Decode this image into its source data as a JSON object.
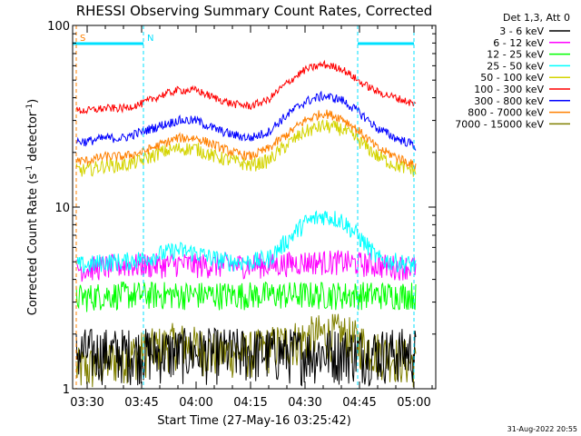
{
  "chart_data": {
    "type": "line",
    "title": "RHESSI Observing Summary Count Rates, Corrected",
    "xlabel": "Start Time (27-May-16 03:25:42)",
    "ylabel_main": "Corrected Count Rate (s",
    "ylabel_sup1": "-1",
    "ylabel_mid": " detector",
    "ylabel_sup2": "-1",
    "ylabel_end": ")",
    "y_scale": "log",
    "ylim": [
      1,
      100
    ],
    "y_ticks": [
      {
        "value": 1,
        "label": "1"
      },
      {
        "value": 10,
        "label": "10"
      },
      {
        "value": 100,
        "label": "100"
      }
    ],
    "x_start_min": 206,
    "x_end_min": 306,
    "x_ticks": [
      {
        "min": 210,
        "label": "03:30"
      },
      {
        "min": 225,
        "label": "03:45"
      },
      {
        "min": 240,
        "label": "04:00"
      },
      {
        "min": 255,
        "label": "04:15"
      },
      {
        "min": 270,
        "label": "04:30"
      },
      {
        "min": 285,
        "label": "04:45"
      },
      {
        "min": 300,
        "label": "05:00"
      }
    ],
    "legend_title": "Det 1,3, Att 0",
    "legend_placement": "right",
    "series": [
      {
        "name": "3 - 6 keV",
        "color": "#000000"
      },
      {
        "name": "6 - 12 keV",
        "color": "#ff00ff"
      },
      {
        "name": "12 - 25 keV",
        "color": "#00ff00"
      },
      {
        "name": "25 - 50 keV",
        "color": "#00ffff"
      },
      {
        "name": "50 - 100 keV",
        "color": "#d4d400"
      },
      {
        "name": "100 - 300 keV",
        "color": "#ff0000"
      },
      {
        "name": "300 - 800 keV",
        "color": "#0000ff"
      },
      {
        "name": "800 - 7000 keV",
        "color": "#ff8000"
      },
      {
        "name": "7000 - 15000 keV",
        "color": "#808000"
      }
    ],
    "envelopes": {
      "x": [
        206,
        210,
        215,
        220,
        225,
        230,
        235,
        240,
        245,
        250,
        255,
        260,
        265,
        270,
        275,
        280,
        285,
        290,
        295,
        300,
        301
      ],
      "100 - 300 keV": [
        34,
        34,
        35,
        35,
        37,
        41,
        44,
        44,
        40,
        37,
        36,
        39,
        48,
        57,
        61,
        58,
        49,
        43,
        40,
        37,
        36
      ],
      "300 - 800 keV": [
        23,
        23,
        24,
        24,
        26,
        28,
        30,
        30,
        27,
        25,
        24,
        26,
        32,
        38,
        41,
        39,
        33,
        27,
        24,
        22,
        21
      ],
      "800 - 7000 keV": [
        18,
        18,
        19,
        19,
        20,
        22,
        24,
        24,
        22,
        20,
        19,
        21,
        25,
        30,
        33,
        31,
        26,
        21,
        19,
        17,
        17
      ],
      "50 - 100 keV": [
        16,
        16,
        17,
        17,
        18,
        20,
        21,
        21,
        19,
        18,
        17,
        18,
        22,
        26,
        28,
        27,
        23,
        19,
        17,
        16,
        15
      ],
      "25 - 50 keV": [
        4.8,
        4.8,
        5,
        5,
        5.2,
        5.5,
        5.8,
        5.6,
        5.2,
        5,
        5,
        5.2,
        6.5,
        8.2,
        9,
        8.5,
        6.8,
        5.2,
        5,
        4.8,
        4.8
      ],
      "6 - 12 keV": [
        4.6,
        4.6,
        4.7,
        4.8,
        4.8,
        4.8,
        4.9,
        4.8,
        4.8,
        4.8,
        4.8,
        4.8,
        4.9,
        5,
        5,
        5,
        4.9,
        4.8,
        4.7,
        4.7,
        4.6
      ],
      "12 - 25 keV": [
        3.2,
        3.2,
        3.3,
        3.3,
        3.3,
        3.3,
        3.3,
        3.3,
        3.3,
        3.3,
        3.3,
        3.3,
        3.3,
        3.3,
        3.3,
        3.3,
        3.3,
        3.3,
        3.3,
        3.3,
        3.2
      ],
      "3 - 6 keV": [
        1.6,
        1.6,
        1.6,
        1.6,
        1.6,
        1.6,
        1.6,
        1.6,
        1.6,
        1.6,
        1.6,
        1.6,
        1.6,
        1.6,
        1.6,
        1.6,
        1.6,
        1.6,
        1.6,
        1.6,
        1.6
      ],
      "7000 - 15000 keV": [
        1.3,
        1.3,
        1.4,
        1.5,
        1.6,
        1.7,
        1.8,
        1.7,
        1.6,
        1.6,
        1.6,
        1.7,
        1.8,
        1.9,
        2,
        2,
        1.8,
        1.6,
        1.5,
        1.4,
        1.3
      ]
    },
    "flag_markers": [
      {
        "label": "S",
        "min": 207,
        "color": "#ff8000"
      },
      {
        "label": "N",
        "min": 225.5,
        "color": "#00e0ff"
      }
    ],
    "flag_bars": [
      {
        "from": 206,
        "to": 225.5,
        "color": "#00e0ff"
      },
      {
        "from": 284.5,
        "to": 300,
        "color": "#00e0ff"
      }
    ],
    "vertical_lines": [
      {
        "min": 207,
        "color": "#ff8000"
      },
      {
        "min": 225.5,
        "color": "#00e0ff"
      },
      {
        "min": 284.5,
        "color": "#00e0ff"
      },
      {
        "min": 300,
        "color": "#00e0ff"
      }
    ]
  },
  "footer_date": "31-Aug-2022 20:55"
}
